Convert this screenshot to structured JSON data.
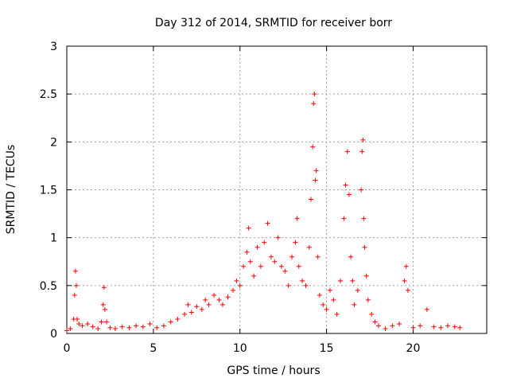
{
  "chart_data": {
    "type": "scatter",
    "title": "Day 312 of 2014, SRMTID for receiver borr",
    "xlabel": "GPS time / hours",
    "ylabel": "SRMTID / TECUs",
    "xlim": [
      0,
      24.25
    ],
    "ylim": [
      0,
      3
    ],
    "xticks": [
      0,
      5,
      10,
      15,
      20
    ],
    "yticks": [
      0,
      0.5,
      1,
      1.5,
      2,
      2.5,
      3
    ],
    "xtick_labels": [
      "0",
      "5",
      "10",
      "15",
      "20"
    ],
    "ytick_labels": [
      "0",
      "0.5",
      "1",
      "1.5",
      "2",
      "2.5",
      "3"
    ],
    "grid": true,
    "marker": "+",
    "color": "#ff0000",
    "series": [
      {
        "name": "SRMTID",
        "x": [
          0.0,
          0.2,
          0.4,
          0.45,
          0.5,
          0.55,
          0.6,
          0.7,
          0.9,
          1.2,
          1.5,
          1.8,
          2.0,
          2.1,
          2.15,
          2.2,
          2.3,
          2.5,
          2.8,
          3.2,
          3.6,
          4.0,
          4.4,
          4.8,
          5.2,
          5.6,
          6.0,
          6.4,
          6.8,
          7.0,
          7.2,
          7.5,
          7.8,
          8.0,
          8.2,
          8.5,
          8.8,
          9.0,
          9.3,
          9.6,
          9.8,
          10.0,
          10.2,
          10.4,
          10.5,
          10.6,
          10.8,
          11.0,
          11.2,
          11.4,
          11.6,
          11.8,
          12.0,
          12.2,
          12.4,
          12.6,
          12.8,
          13.0,
          13.2,
          13.3,
          13.4,
          13.6,
          13.8,
          14.0,
          14.1,
          14.2,
          14.25,
          14.3,
          14.35,
          14.4,
          14.5,
          14.6,
          14.8,
          15.0,
          15.2,
          15.4,
          15.6,
          15.8,
          16.0,
          16.1,
          16.2,
          16.3,
          16.4,
          16.5,
          16.6,
          16.8,
          17.0,
          17.05,
          17.1,
          17.15,
          17.2,
          17.3,
          17.4,
          17.6,
          17.8,
          18.0,
          18.4,
          18.8,
          19.2,
          19.5,
          19.6,
          19.7,
          20.0,
          20.4,
          20.8,
          21.2,
          21.6,
          22.0,
          22.4,
          22.7
        ],
        "y": [
          0.03,
          0.05,
          0.15,
          0.4,
          0.65,
          0.5,
          0.15,
          0.1,
          0.08,
          0.1,
          0.07,
          0.05,
          0.12,
          0.3,
          0.48,
          0.25,
          0.12,
          0.06,
          0.05,
          0.07,
          0.06,
          0.08,
          0.07,
          0.1,
          0.06,
          0.08,
          0.12,
          0.15,
          0.2,
          0.3,
          0.22,
          0.28,
          0.25,
          0.35,
          0.3,
          0.4,
          0.35,
          0.3,
          0.38,
          0.45,
          0.55,
          0.5,
          0.7,
          0.85,
          1.1,
          0.75,
          0.6,
          0.9,
          0.7,
          0.95,
          1.15,
          0.8,
          0.75,
          1.0,
          0.7,
          0.65,
          0.5,
          0.8,
          0.95,
          1.2,
          0.7,
          0.55,
          0.5,
          0.9,
          1.4,
          1.95,
          2.4,
          2.5,
          1.6,
          1.7,
          0.8,
          0.4,
          0.3,
          0.25,
          0.45,
          0.35,
          0.2,
          0.55,
          1.2,
          1.55,
          1.9,
          1.45,
          0.8,
          0.55,
          0.3,
          0.45,
          1.5,
          1.9,
          2.02,
          1.2,
          0.9,
          0.6,
          0.35,
          0.2,
          0.12,
          0.08,
          0.05,
          0.08,
          0.1,
          0.55,
          0.7,
          0.45,
          0.06,
          0.08,
          0.25,
          0.07,
          0.06,
          0.08,
          0.07,
          0.06
        ]
      }
    ]
  }
}
